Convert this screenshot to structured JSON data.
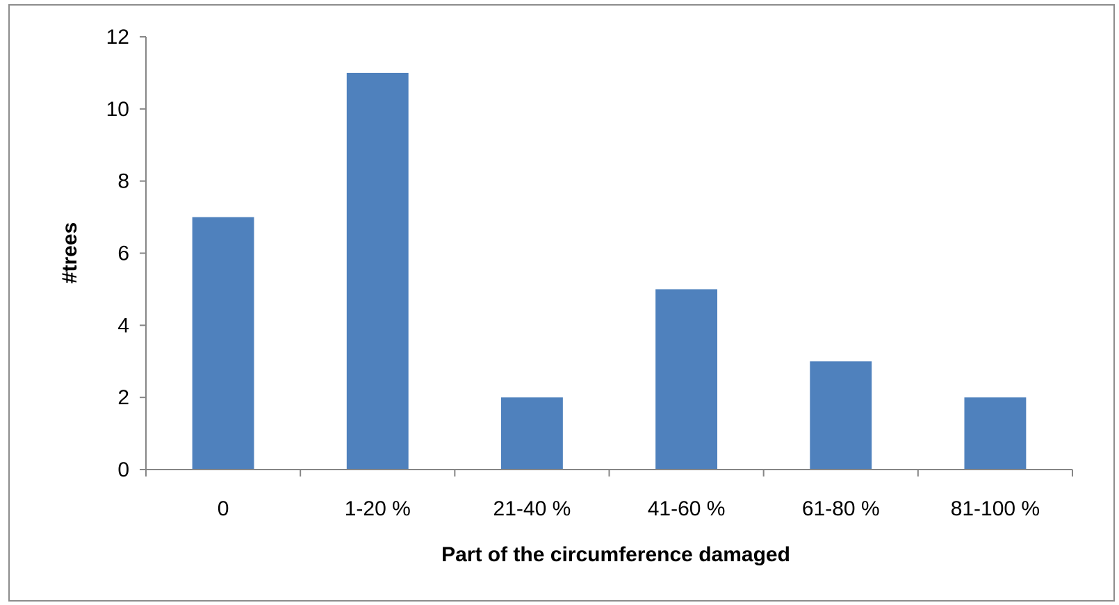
{
  "chart_data": {
    "type": "bar",
    "categories": [
      "0",
      "1-20 %",
      "21-40 %",
      "41-60 %",
      "61-80 %",
      "81-100 %"
    ],
    "values": [
      7,
      11,
      2,
      5,
      3,
      2
    ],
    "title": "",
    "xlabel": "Part of the circumference damaged",
    "ylabel": "#trees",
    "ylim": [
      0,
      12
    ],
    "yticks": [
      0,
      2,
      4,
      6,
      8,
      10,
      12
    ],
    "grid": false,
    "legend": "none",
    "bar_color": "#4F81BD",
    "axis_color": "#868686"
  }
}
